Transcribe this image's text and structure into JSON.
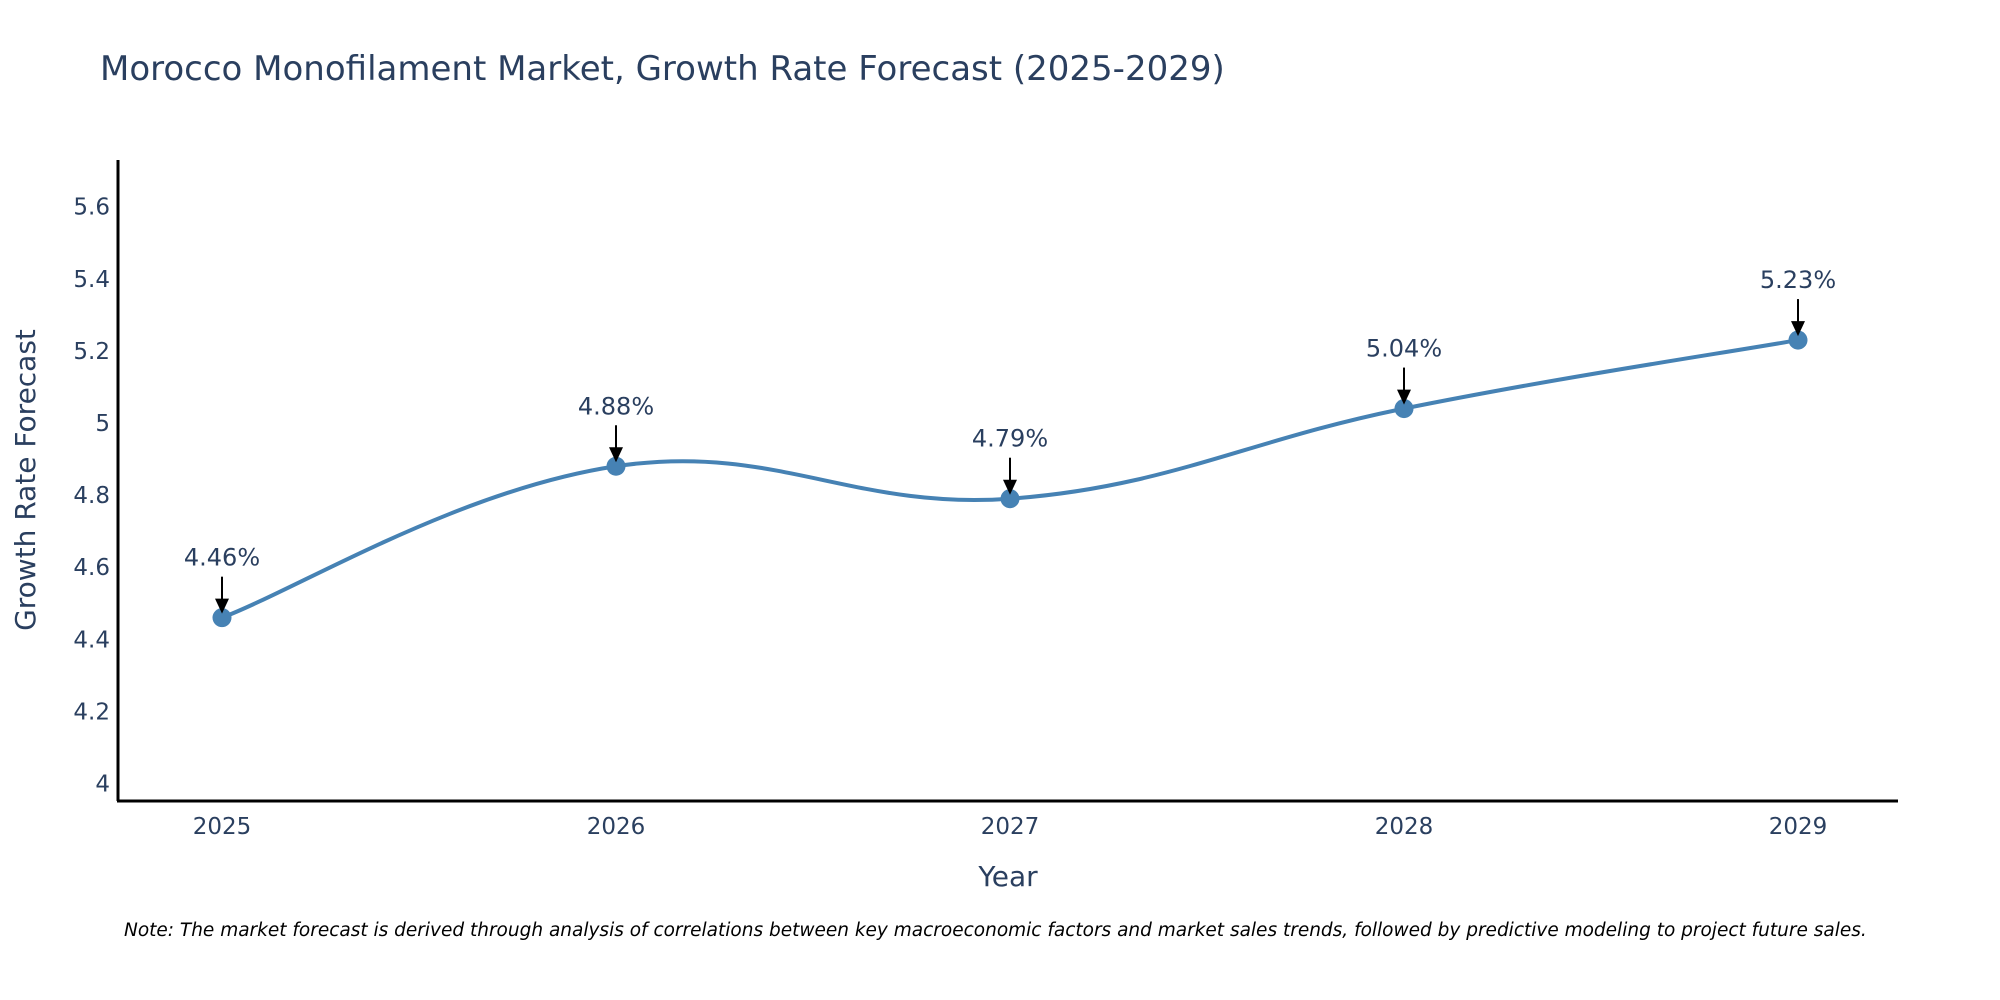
{
  "chart_data": {
    "type": "line",
    "title": "Morocco Monofilament Market, Growth Rate Forecast (2025-2029)",
    "xlabel": "Year",
    "ylabel": "Growth Rate Forecast",
    "categories": [
      "2025",
      "2026",
      "2027",
      "2028",
      "2029"
    ],
    "values": [
      4.46,
      4.88,
      4.79,
      5.04,
      5.23
    ],
    "data_labels": [
      "4.46%",
      "4.88%",
      "4.79%",
      "5.04%",
      "5.23%"
    ],
    "yticks": [
      4,
      4.2,
      4.4,
      4.6,
      4.8,
      5,
      5.2,
      5.4,
      5.6
    ],
    "ytick_labels": [
      "4",
      "4.2",
      "4.4",
      "4.6",
      "4.8",
      "5",
      "5.2",
      "5.4",
      "5.6"
    ],
    "ylim": [
      3.95,
      5.73
    ],
    "line_color": "#4682b4",
    "marker_color": "#4682b4",
    "grid": false,
    "note": "Note: The market forecast is derived through analysis of correlations between key macroeconomic factors and market sales trends, followed by predictive modeling to project future sales."
  }
}
